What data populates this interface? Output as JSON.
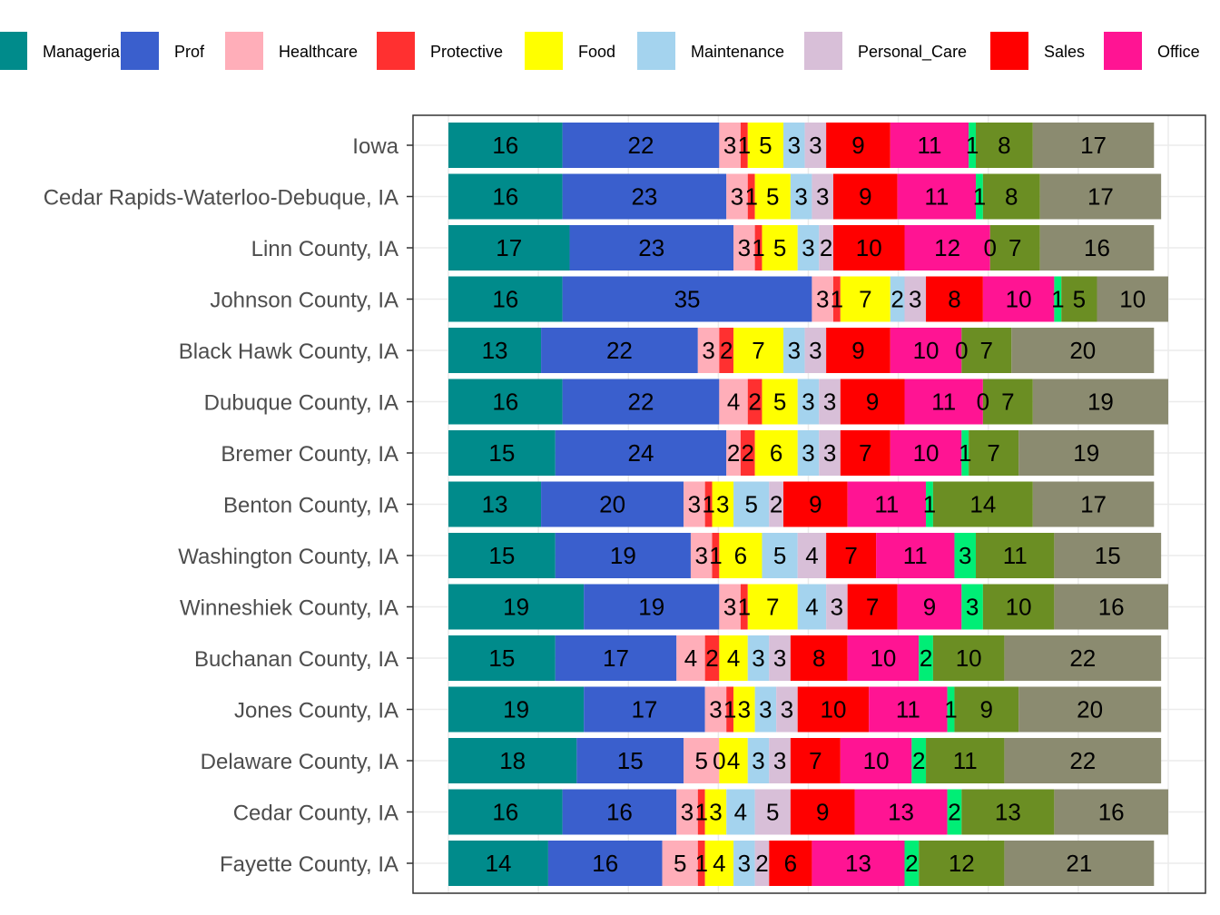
{
  "chart_data": {
    "type": "bar",
    "orientation": "horizontal",
    "stacked": true,
    "title": "",
    "xlabel": "",
    "ylabel": "",
    "xlim": [
      0,
      100
    ],
    "grid": true,
    "legend_position": "top",
    "categories": [
      "Iowa",
      "Cedar Rapids-Waterloo-Debuque, IA",
      "Linn County, IA",
      "Johnson County, IA",
      "Black Hawk County, IA",
      "Dubuque County, IA",
      "Bremer County, IA",
      "Benton County, IA",
      "Washington County, IA",
      "Winneshiek County, IA",
      "Buchanan County, IA",
      "Jones County, IA",
      "Delaware County, IA",
      "Cedar County, IA",
      "Fayette County, IA"
    ],
    "series": [
      {
        "name": "Managerial",
        "color": "#008B8B",
        "values": [
          16,
          16,
          17,
          16,
          13,
          16,
          15,
          13,
          15,
          19,
          15,
          19,
          18,
          16,
          14
        ]
      },
      {
        "name": "Prof",
        "color": "#3A5FCD",
        "values": [
          22,
          23,
          23,
          35,
          22,
          22,
          24,
          20,
          19,
          19,
          17,
          17,
          15,
          16,
          16
        ]
      },
      {
        "name": "Healthcare",
        "color": "#FFAEB9",
        "values": [
          3,
          3,
          3,
          3,
          3,
          4,
          2,
          3,
          3,
          3,
          4,
          3,
          5,
          3,
          5
        ]
      },
      {
        "name": "Protective",
        "color": "#FF3030",
        "values": [
          1,
          1,
          1,
          1,
          2,
          2,
          2,
          1,
          1,
          1,
          2,
          1,
          0,
          1,
          1
        ]
      },
      {
        "name": "Food",
        "color": "#FFFF00",
        "values": [
          5,
          5,
          5,
          7,
          7,
          5,
          6,
          3,
          6,
          7,
          4,
          3,
          4,
          3,
          4
        ]
      },
      {
        "name": "Maintenance",
        "color": "#A4D3EE",
        "values": [
          3,
          3,
          3,
          2,
          3,
          3,
          3,
          5,
          5,
          4,
          3,
          3,
          3,
          4,
          3
        ]
      },
      {
        "name": "Personal_Care",
        "color": "#D8BFD8",
        "values": [
          3,
          3,
          2,
          3,
          3,
          3,
          3,
          2,
          4,
          3,
          3,
          3,
          3,
          5,
          2
        ]
      },
      {
        "name": "Sales",
        "color": "#FF0000",
        "values": [
          9,
          9,
          10,
          8,
          9,
          9,
          7,
          9,
          7,
          7,
          8,
          10,
          7,
          9,
          6
        ]
      },
      {
        "name": "Office",
        "color": "#FF1493",
        "values": [
          11,
          11,
          12,
          10,
          10,
          11,
          10,
          11,
          11,
          9,
          10,
          11,
          10,
          13,
          13
        ]
      },
      {
        "name": "",
        "color": "#00EE76",
        "values": [
          1,
          1,
          0,
          1,
          0,
          0,
          1,
          1,
          3,
          3,
          2,
          1,
          2,
          2,
          2
        ]
      },
      {
        "name": "",
        "color": "#6B8E23",
        "values": [
          8,
          8,
          7,
          5,
          7,
          7,
          7,
          14,
          11,
          10,
          10,
          9,
          11,
          13,
          12
        ]
      },
      {
        "name": "",
        "color": "#8B8B70",
        "values": [
          17,
          17,
          16,
          10,
          20,
          19,
          19,
          17,
          15,
          16,
          22,
          20,
          22,
          16,
          21
        ]
      }
    ]
  }
}
